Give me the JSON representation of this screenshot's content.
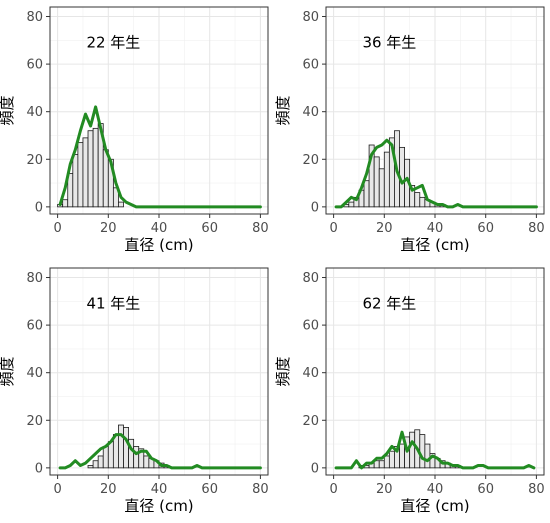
{
  "chart_data": [
    {
      "type": "bar",
      "title": "22 年生",
      "xlabel": "直径 (cm)",
      "ylabel": "頻度",
      "xlim": [
        -3,
        83
      ],
      "ylim": [
        -3,
        84
      ],
      "xticks": [
        0,
        20,
        40,
        60,
        80
      ],
      "yticks": [
        0,
        20,
        40,
        60,
        80
      ],
      "bin_width": 2,
      "bins": [
        1,
        3,
        5,
        7,
        9,
        11,
        13,
        15,
        17,
        19,
        21,
        23,
        25
      ],
      "values": [
        1,
        3,
        14,
        22,
        27,
        29,
        32,
        33,
        35,
        24,
        20,
        8,
        2
      ],
      "line": {
        "x": [
          1,
          3,
          5,
          7,
          9,
          11,
          13,
          15,
          17,
          19,
          21,
          23,
          25,
          27,
          29,
          31,
          33,
          35,
          40,
          50,
          60,
          70,
          80
        ],
        "y": [
          1,
          8,
          18,
          24,
          32,
          39,
          34,
          42,
          33,
          24,
          19,
          10,
          4,
          2,
          1,
          0,
          0,
          0,
          0,
          0,
          0,
          0,
          0
        ],
        "color": "#228b22"
      }
    },
    {
      "type": "bar",
      "title": "36 年生",
      "xlabel": "直径 (cm)",
      "ylabel": "頻度",
      "xlim": [
        -3,
        83
      ],
      "ylim": [
        -3,
        84
      ],
      "xticks": [
        0,
        20,
        40,
        60,
        80
      ],
      "yticks": [
        0,
        20,
        40,
        60,
        80
      ],
      "bin_width": 2,
      "bins": [
        5,
        7,
        9,
        11,
        13,
        15,
        17,
        19,
        21,
        23,
        25,
        27,
        29,
        31,
        33,
        35,
        37,
        39,
        41,
        43
      ],
      "values": [
        1,
        2,
        4,
        7,
        11,
        26,
        21,
        16,
        23,
        29,
        32,
        25,
        20,
        9,
        6,
        4,
        3,
        2,
        1,
        1
      ],
      "line": {
        "x": [
          1,
          3,
          5,
          7,
          9,
          11,
          13,
          15,
          17,
          19,
          21,
          23,
          25,
          27,
          29,
          31,
          33,
          35,
          37,
          39,
          41,
          43,
          45,
          47,
          49,
          51,
          55,
          60,
          70,
          80
        ],
        "y": [
          0,
          0,
          2,
          4,
          3,
          8,
          14,
          22,
          25,
          26,
          28,
          26,
          15,
          10,
          12,
          7,
          8,
          9,
          3,
          2,
          1,
          1,
          0,
          0,
          1,
          0,
          0,
          0,
          0,
          0
        ],
        "color": "#228b22"
      }
    },
    {
      "type": "bar",
      "title": "41 年生",
      "xlabel": "直径 (cm)",
      "ylabel": "頻度",
      "xlim": [
        -3,
        83
      ],
      "ylim": [
        -3,
        84
      ],
      "xticks": [
        0,
        20,
        40,
        60,
        80
      ],
      "yticks": [
        0,
        20,
        40,
        60,
        80
      ],
      "bin_width": 2,
      "bins": [
        13,
        15,
        17,
        19,
        21,
        23,
        25,
        27,
        29,
        31,
        33,
        35,
        37,
        39,
        41,
        43
      ],
      "values": [
        1,
        3,
        5,
        9,
        11,
        14,
        18,
        17,
        12,
        9,
        8,
        5,
        4,
        3,
        2,
        1
      ],
      "line": {
        "x": [
          1,
          3,
          5,
          7,
          9,
          11,
          13,
          15,
          17,
          19,
          21,
          23,
          25,
          27,
          29,
          31,
          33,
          35,
          37,
          39,
          41,
          43,
          45,
          47,
          49,
          51,
          53,
          55,
          57,
          59,
          65,
          70,
          80
        ],
        "y": [
          0,
          0,
          1,
          3,
          1,
          2,
          4,
          6,
          8,
          9,
          11,
          14,
          14,
          12,
          8,
          6,
          7,
          7,
          4,
          3,
          1,
          1,
          0,
          0,
          0,
          0,
          0,
          1,
          0,
          0,
          0,
          0,
          0
        ],
        "color": "#228b22"
      }
    },
    {
      "type": "bar",
      "title": "62 年生",
      "xlabel": "直径 (cm)",
      "ylabel": "頻度",
      "xlim": [
        -3,
        83
      ],
      "ylim": [
        -3,
        84
      ],
      "xticks": [
        0,
        20,
        40,
        60,
        80
      ],
      "yticks": [
        0,
        20,
        40,
        60,
        80
      ],
      "bin_width": 2,
      "bins": [
        11,
        13,
        15,
        17,
        19,
        21,
        23,
        25,
        27,
        29,
        31,
        33,
        35,
        37,
        39,
        41,
        43,
        45,
        47,
        49
      ],
      "values": [
        1,
        1,
        2,
        3,
        3,
        5,
        7,
        9,
        10,
        13,
        15,
        16,
        14,
        10,
        6,
        4,
        3,
        2,
        1,
        1
      ],
      "line": {
        "x": [
          1,
          3,
          5,
          7,
          9,
          11,
          13,
          15,
          17,
          19,
          21,
          23,
          25,
          27,
          29,
          31,
          33,
          35,
          37,
          39,
          41,
          43,
          45,
          47,
          49,
          51,
          53,
          55,
          57,
          59,
          61,
          65,
          70,
          75,
          77,
          79
        ],
        "y": [
          0,
          0,
          0,
          0,
          3,
          0,
          2,
          2,
          4,
          4,
          6,
          9,
          7,
          15,
          7,
          11,
          8,
          4,
          3,
          5,
          4,
          2,
          2,
          1,
          1,
          0,
          0,
          0,
          1,
          1,
          0,
          0,
          0,
          0,
          1,
          0
        ],
        "color": "#228b22"
      }
    }
  ]
}
